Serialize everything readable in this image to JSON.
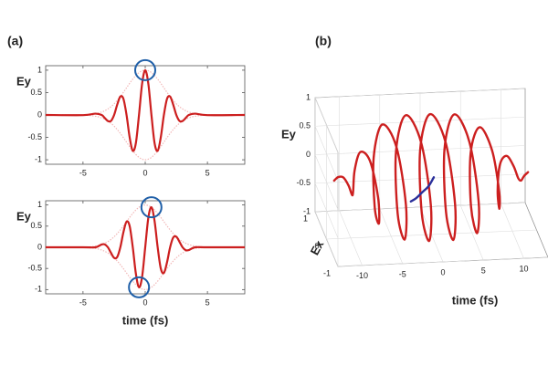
{
  "chart_data": [
    {
      "type": "line",
      "panel_label": "(a)",
      "ylabel": "Ey",
      "x": [
        -8,
        -5,
        -4,
        -3.5,
        -3.25,
        -3,
        -2.75,
        -2.5,
        -2.25,
        -2,
        -1.75,
        -1.5,
        -1.25,
        -1,
        -0.75,
        -0.5,
        -0.25,
        0,
        0.25,
        0.5,
        0.75,
        1,
        1.25,
        1.5,
        1.75,
        2,
        2.25,
        2.5,
        2.75,
        3,
        3.25,
        3.5,
        4,
        5,
        8
      ],
      "series": [
        {
          "color": "#f2b8b8",
          "line_style": "dotted",
          "values": [
            0,
            0.004,
            0.029,
            0.066,
            0.096,
            0.135,
            0.186,
            0.249,
            0.325,
            0.411,
            0.506,
            0.607,
            0.707,
            0.801,
            0.882,
            0.946,
            0.986,
            1,
            0.986,
            0.946,
            0.882,
            0.801,
            0.707,
            0.607,
            0.506,
            0.411,
            0.325,
            0.249,
            0.186,
            0.135,
            0.096,
            0.066,
            0.029,
            0.004,
            0
          ]
        },
        {
          "color": "#f2b8b8",
          "line_style": "dotted",
          "values": [
            0,
            -0.004,
            -0.029,
            -0.066,
            -0.096,
            -0.135,
            -0.186,
            -0.249,
            -0.325,
            -0.411,
            -0.506,
            -0.607,
            -0.707,
            -0.801,
            -0.882,
            -0.946,
            -0.986,
            -1,
            -0.986,
            -0.946,
            -0.882,
            -0.801,
            -0.707,
            -0.607,
            -0.506,
            -0.411,
            -0.325,
            -0.249,
            -0.186,
            -0.135,
            -0.096,
            -0.066,
            -0.029,
            -0.004,
            0
          ]
        },
        {
          "color": "#cc1f1f",
          "line_style": "solid",
          "values": [
            0,
            -0.004,
            0.029,
            0,
            -0.068,
            -0.135,
            -0.132,
            0,
            0.23,
            0.411,
            0.358,
            0,
            -0.5,
            -0.801,
            -0.624,
            0,
            0.697,
            1,
            0.697,
            0,
            -0.624,
            -0.801,
            -0.5,
            0,
            0.358,
            0.411,
            0.23,
            0,
            -0.132,
            -0.135,
            -0.068,
            0,
            0.029,
            -0.004,
            0
          ]
        }
      ],
      "highlights": [
        {
          "x": 0,
          "y": 1
        }
      ],
      "highlight_color": "#1f5fa8",
      "xlim": [
        -8,
        8
      ],
      "ylim": [
        -1.1,
        1.1
      ],
      "xticks": [
        -5,
        0,
        5
      ],
      "yticks": [
        -1,
        -0.5,
        0,
        0.5,
        1
      ]
    },
    {
      "type": "line",
      "ylabel": "Ey",
      "xlabel": "time (fs)",
      "x": [
        -8,
        -5,
        -4,
        -3.5,
        -3.25,
        -3,
        -2.75,
        -2.5,
        -2.25,
        -2,
        -1.75,
        -1.5,
        -1.25,
        -1,
        -0.75,
        -0.5,
        -0.25,
        0,
        0.25,
        0.5,
        0.75,
        1,
        1.25,
        1.5,
        1.75,
        2,
        2.25,
        2.5,
        2.75,
        3,
        3.25,
        3.5,
        4,
        5,
        8
      ],
      "series": [
        {
          "color": "#f2b8b8",
          "line_style": "dotted",
          "values": [
            0,
            0.004,
            0.029,
            0.066,
            0.096,
            0.135,
            0.186,
            0.249,
            0.325,
            0.411,
            0.506,
            0.607,
            0.707,
            0.801,
            0.882,
            0.946,
            0.986,
            1,
            0.986,
            0.946,
            0.882,
            0.801,
            0.707,
            0.607,
            0.506,
            0.411,
            0.325,
            0.249,
            0.186,
            0.135,
            0.096,
            0.066,
            0.029,
            0.004,
            0
          ]
        },
        {
          "color": "#f2b8b8",
          "line_style": "dotted",
          "values": [
            0,
            -0.004,
            -0.029,
            -0.066,
            -0.096,
            -0.135,
            -0.186,
            -0.249,
            -0.325,
            -0.411,
            -0.506,
            -0.607,
            -0.707,
            -0.801,
            -0.882,
            -0.946,
            -0.986,
            -1,
            -0.986,
            -0.946,
            -0.882,
            -0.801,
            -0.707,
            -0.607,
            -0.506,
            -0.411,
            -0.325,
            -0.249,
            -0.186,
            -0.135,
            -0.096,
            -0.066,
            -0.029,
            -0.004,
            0
          ]
        },
        {
          "color": "#cc1f1f",
          "line_style": "solid",
          "values": [
            0,
            0,
            0,
            0.066,
            0.068,
            0,
            -0.132,
            -0.249,
            -0.23,
            0,
            0.358,
            0.607,
            0.5,
            0,
            -0.624,
            -0.946,
            -0.697,
            0,
            0.697,
            0.946,
            0.624,
            0,
            -0.5,
            -0.607,
            -0.358,
            0,
            0.23,
            0.249,
            0.132,
            0,
            -0.068,
            -0.066,
            0,
            0,
            0
          ]
        }
      ],
      "highlights": [
        {
          "x": -0.5,
          "y": -0.946
        },
        {
          "x": 0.5,
          "y": 0.946
        }
      ],
      "highlight_color": "#1f5fa8",
      "xlim": [
        -8,
        8
      ],
      "ylim": [
        -1.1,
        1.1
      ],
      "xticks": [
        -5,
        0,
        5
      ],
      "yticks": [
        -1,
        -0.5,
        0,
        0.5,
        1
      ]
    },
    {
      "type": "line3d",
      "panel_label": "(b)",
      "xlabel": "time (fs)",
      "ylabel": "Ex",
      "zlabel": "Ey",
      "series": [
        {
          "color": "#cc1f1f",
          "x": [
            -12,
            -11.5,
            -11,
            -10.5,
            -10,
            -9.5,
            -9,
            -8.5,
            -8,
            -7.5,
            -7,
            -6.5,
            -6,
            -5.5,
            -5,
            -4.5,
            -4,
            -3.5,
            -3,
            -2.5,
            -2,
            -1.5,
            -1,
            -0.5,
            0,
            0.5,
            1,
            1.5,
            2,
            2.5,
            3,
            3.5,
            4,
            4.5,
            5,
            5.5,
            6,
            6.5,
            7,
            7.5,
            8,
            8.5,
            9,
            9.5,
            10,
            10.5,
            11,
            11.5,
            12
          ],
          "y": [
            0.04,
            0.035,
            -0.055,
            -0.16,
            -0.11,
            0.145,
            0.37,
            0.225,
            -0.27,
            -0.62,
            -0.345,
            0.38,
            0.82,
            0.435,
            -0.455,
            -0.94,
            -0.48,
            0.49,
            0.99,
            0.5,
            -0.5,
            -1,
            -0.5,
            0.5,
            1,
            0.5,
            -0.5,
            -1,
            -0.5,
            0.5,
            0.99,
            0.49,
            -0.48,
            -0.94,
            -0.455,
            0.435,
            0.82,
            0.38,
            -0.345,
            -0.62,
            -0.27,
            0.225,
            0.37,
            0.145,
            -0.11,
            -0.16,
            -0.055,
            0.035,
            0.04
          ],
          "z": [
            0,
            0.061,
            0.095,
            0,
            -0.191,
            -0.251,
            0,
            0.39,
            0.468,
            0,
            -0.598,
            -0.658,
            0,
            0.753,
            0.788,
            0,
            -0.831,
            -0.849,
            0,
            0.866,
            0.866,
            0,
            -0.866,
            -0.866,
            0,
            0.866,
            0.866,
            0,
            -0.866,
            -0.866,
            0,
            0.849,
            0.831,
            0,
            -0.788,
            -0.753,
            0,
            0.658,
            0.598,
            0,
            -0.468,
            -0.39,
            0,
            0.251,
            0.191,
            0,
            -0.095,
            -0.061,
            0
          ]
        },
        {
          "color": "#2a2f9a",
          "x": [
            -2,
            -1.5,
            -1,
            -0.5,
            0
          ],
          "y": [
            0.4,
            0.3,
            0.1,
            -0.1,
            -0.2
          ],
          "z": [
            -0.6,
            -0.5,
            -0.3,
            -0.1,
            0.1
          ]
        }
      ],
      "xlim": [
        -13,
        13
      ],
      "ylim": [
        -1,
        1
      ],
      "zlim": [
        -1,
        1
      ],
      "xticks": [
        -10,
        -5,
        0,
        5,
        10
      ],
      "yticks": [
        -1,
        0,
        1
      ],
      "zticks": [
        -1,
        -0.5,
        0,
        0.5,
        1
      ]
    }
  ]
}
